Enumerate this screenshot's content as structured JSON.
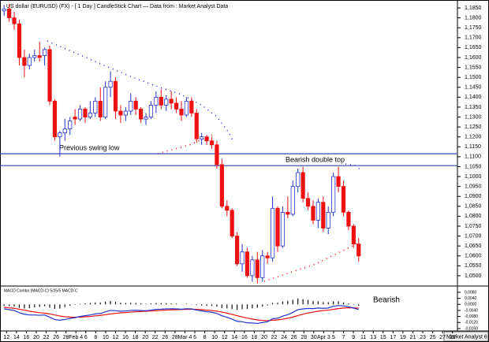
{
  "title": "US dollar (EURUSD) (FX) -  [ 1 Day ] CandleStick Chart — Data from : Market Analyst Data",
  "footer": "Market Analyst 6",
  "chart_data": [
    {
      "type": "candlestick",
      "up_color": "#2233cc",
      "down_color": "#ee1111",
      "open": [
        1.1835,
        1.1845,
        1.18,
        1.177,
        1.16,
        1.156,
        1.16,
        1.161,
        1.161,
        1.164,
        1.138,
        1.12,
        1.122,
        1.124,
        1.13,
        1.129,
        1.134,
        1.13,
        1.132,
        1.138,
        1.13,
        1.145,
        1.148,
        1.133,
        1.131,
        1.133,
        1.138,
        1.134,
        1.129,
        1.13,
        1.136,
        1.14,
        1.136,
        1.139,
        1.137,
        1.134,
        1.131,
        1.138,
        1.132,
        1.119,
        1.12,
        1.118,
        1.116,
        1.106,
        1.085,
        1.083,
        1.07,
        1.056,
        1.062,
        1.05,
        1.058,
        1.049,
        1.06,
        1.059,
        1.084,
        1.065,
        1.082,
        1.081,
        1.095,
        1.102,
        1.089,
        1.085,
        1.078,
        1.087,
        1.074,
        1.082,
        1.1,
        1.095,
        1.082,
        1.075,
        1.066
      ],
      "high": [
        1.1865,
        1.187,
        1.183,
        1.179,
        1.164,
        1.162,
        1.164,
        1.168,
        1.165,
        1.166,
        1.139,
        1.123,
        1.129,
        1.13,
        1.134,
        1.136,
        1.135,
        1.138,
        1.14,
        1.145,
        1.148,
        1.153,
        1.15,
        1.136,
        1.135,
        1.142,
        1.14,
        1.135,
        1.132,
        1.138,
        1.143,
        1.144,
        1.141,
        1.143,
        1.14,
        1.138,
        1.14,
        1.14,
        1.134,
        1.122,
        1.121,
        1.12,
        1.118,
        1.109,
        1.088,
        1.084,
        1.072,
        1.066,
        1.064,
        1.06,
        1.062,
        1.063,
        1.062,
        1.09,
        1.085,
        1.085,
        1.09,
        1.098,
        1.104,
        1.105,
        1.092,
        1.088,
        1.089,
        1.09,
        1.085,
        1.102,
        1.105,
        1.098,
        1.083,
        1.076,
        1.069
      ],
      "low": [
        1.181,
        1.178,
        1.174,
        1.156,
        1.15,
        1.154,
        1.158,
        1.158,
        1.156,
        1.136,
        1.118,
        1.11,
        1.118,
        1.121,
        1.126,
        1.128,
        1.127,
        1.129,
        1.13,
        1.128,
        1.129,
        1.14,
        1.129,
        1.127,
        1.128,
        1.131,
        1.131,
        1.127,
        1.126,
        1.129,
        1.132,
        1.134,
        1.133,
        1.134,
        1.132,
        1.128,
        1.13,
        1.13,
        1.117,
        1.116,
        1.116,
        1.114,
        1.104,
        1.084,
        1.08,
        1.069,
        1.055,
        1.052,
        1.049,
        1.047,
        1.046,
        1.047,
        1.056,
        1.057,
        1.062,
        1.064,
        1.079,
        1.08,
        1.092,
        1.087,
        1.083,
        1.076,
        1.074,
        1.072,
        1.071,
        1.08,
        1.092,
        1.08,
        1.073,
        1.064,
        1.057
      ],
      "close": [
        1.1845,
        1.18,
        1.177,
        1.16,
        1.156,
        1.16,
        1.161,
        1.16,
        1.164,
        1.138,
        1.12,
        1.122,
        1.124,
        1.128,
        1.129,
        1.134,
        1.13,
        1.132,
        1.138,
        1.13,
        1.145,
        1.148,
        1.133,
        1.131,
        1.133,
        1.138,
        1.134,
        1.129,
        1.13,
        1.136,
        1.14,
        1.136,
        1.139,
        1.137,
        1.134,
        1.131,
        1.138,
        1.132,
        1.119,
        1.12,
        1.118,
        1.116,
        1.106,
        1.085,
        1.083,
        1.07,
        1.056,
        1.062,
        1.05,
        1.058,
        1.049,
        1.06,
        1.059,
        1.084,
        1.065,
        1.082,
        1.081,
        1.095,
        1.102,
        1.089,
        1.085,
        1.078,
        1.087,
        1.074,
        1.082,
        1.1,
        1.095,
        1.082,
        1.075,
        1.066,
        1.06
      ],
      "ylim": [
        1.0452,
        1.1882
      ],
      "yticks": [
        {
          "value": 1.185,
          "label": "1,1850"
        },
        {
          "value": 1.18,
          "label": "1,1800"
        },
        {
          "value": 1.175,
          "label": "1,1750"
        },
        {
          "value": 1.17,
          "label": "1,1700"
        },
        {
          "value": 1.165,
          "label": "1,1650"
        },
        {
          "value": 1.16,
          "label": "1,1600"
        },
        {
          "value": 1.155,
          "label": "1,1550"
        },
        {
          "value": 1.15,
          "label": "1,1500"
        },
        {
          "value": 1.145,
          "label": "1,1450"
        },
        {
          "value": 1.14,
          "label": "1,1400"
        },
        {
          "value": 1.135,
          "label": "1,1350"
        },
        {
          "value": 1.13,
          "label": "1,1300"
        },
        {
          "value": 1.125,
          "label": "1,1250"
        },
        {
          "value": 1.12,
          "label": "1,1200"
        },
        {
          "value": 1.115,
          "label": "1,1150"
        },
        {
          "value": 1.11,
          "label": "1,1100"
        },
        {
          "value": 1.105,
          "label": "1,1050"
        },
        {
          "value": 1.1,
          "label": "1,1000"
        },
        {
          "value": 1.095,
          "label": "1,0950"
        },
        {
          "value": 1.09,
          "label": "1,0900"
        },
        {
          "value": 1.085,
          "label": "1,0850"
        },
        {
          "value": 1.08,
          "label": "1,0800"
        },
        {
          "value": 1.075,
          "label": "1,0750"
        },
        {
          "value": 1.07,
          "label": "1,0700"
        },
        {
          "value": 1.065,
          "label": "1,0650"
        },
        {
          "value": 1.06,
          "label": "1,0600"
        },
        {
          "value": 1.055,
          "label": "1,0550"
        },
        {
          "value": 1.05,
          "label": "1,0500"
        }
      ],
      "levels": [
        {
          "value": 1.1115,
          "label": "Previous swing low",
          "color": "#3344aa"
        },
        {
          "value": 1.1055,
          "label": "Bearish double top",
          "color": "#3344aa"
        }
      ],
      "x_labels": [
        "12",
        "14",
        "16",
        "20",
        "22",
        "26",
        "28",
        "Feb 4",
        "6",
        "8",
        "10",
        "12",
        "16",
        "18",
        "20",
        "22",
        "26",
        "28",
        "Mar 4",
        "6",
        "8",
        "10",
        "12",
        "14",
        "16",
        "18",
        "20",
        "22",
        "24",
        "26",
        "28",
        "30",
        "Apr 3",
        "5",
        "7",
        "9",
        "11",
        "13",
        "15",
        "17",
        "19",
        "21",
        "23",
        "25",
        "27",
        "29"
      ]
    },
    {
      "type": "macd",
      "title": "MACD Combo (MACD-C) 5/25/5 MACD-C",
      "annotation": "Bearish",
      "macd": {
        "color": "#2233cc",
        "values": [
          -0.003,
          -0.0035,
          -0.004,
          -0.0055,
          -0.0065,
          -0.007,
          -0.007,
          -0.0072,
          -0.007,
          -0.0085,
          -0.01,
          -0.0105,
          -0.01,
          -0.0093,
          -0.0088,
          -0.008,
          -0.0075,
          -0.007,
          -0.0063,
          -0.006,
          -0.005,
          -0.004,
          -0.0042,
          -0.0045,
          -0.0044,
          -0.004,
          -0.0039,
          -0.0041,
          -0.0042,
          -0.0038,
          -0.0033,
          -0.0032,
          -0.003,
          -0.0029,
          -0.003,
          -0.0032,
          -0.0029,
          -0.003,
          -0.0038,
          -0.0043,
          -0.0048,
          -0.0052,
          -0.006,
          -0.0075,
          -0.0085,
          -0.0098,
          -0.0112,
          -0.0115,
          -0.0122,
          -0.0123,
          -0.0126,
          -0.012,
          -0.0115,
          -0.0095,
          -0.0092,
          -0.0078,
          -0.0068,
          -0.0053,
          -0.0035,
          -0.003,
          -0.0027,
          -0.0028,
          -0.0024,
          -0.0026,
          -0.0024,
          -0.0012,
          -0.0008,
          -0.001,
          -0.0016,
          -0.0025,
          -0.0034
        ]
      },
      "signal": {
        "color": "#ee1111",
        "values": [
          -0.002,
          -0.0023,
          -0.0026,
          -0.0032,
          -0.0038,
          -0.0045,
          -0.005,
          -0.0055,
          -0.0058,
          -0.0063,
          -0.007,
          -0.0077,
          -0.0082,
          -0.0084,
          -0.0085,
          -0.0084,
          -0.0082,
          -0.008,
          -0.0076,
          -0.0073,
          -0.0068,
          -0.0063,
          -0.0059,
          -0.0056,
          -0.0054,
          -0.0051,
          -0.0049,
          -0.0047,
          -0.0046,
          -0.0044,
          -0.0042,
          -0.004,
          -0.0038,
          -0.0036,
          -0.0035,
          -0.0034,
          -0.0033,
          -0.0032,
          -0.0033,
          -0.0035,
          -0.0038,
          -0.0041,
          -0.0045,
          -0.0051,
          -0.0058,
          -0.0066,
          -0.0075,
          -0.0083,
          -0.0091,
          -0.0097,
          -0.0103,
          -0.0106,
          -0.0108,
          -0.0105,
          -0.0103,
          -0.0098,
          -0.0092,
          -0.0084,
          -0.0074,
          -0.0065,
          -0.0057,
          -0.0051,
          -0.0045,
          -0.0041,
          -0.0038,
          -0.0033,
          -0.0028,
          -0.0024,
          -0.0022,
          -0.0023,
          -0.0025
        ]
      },
      "histogram": {
        "color": "#111111",
        "values": [
          -0.001,
          -0.0012,
          -0.0014,
          -0.0023,
          -0.0027,
          -0.0025,
          -0.002,
          -0.0017,
          -0.0012,
          -0.0022,
          -0.003,
          -0.0028,
          -0.0018,
          -0.0009,
          -0.0003,
          0.0004,
          0.0007,
          0.001,
          0.0013,
          0.0013,
          0.0018,
          0.0023,
          0.0017,
          0.0011,
          0.001,
          0.0011,
          0.001,
          0.0006,
          0.0004,
          0.0006,
          0.0009,
          0.0008,
          0.0008,
          0.0007,
          0.0005,
          0.0002,
          0.0004,
          0.0002,
          -0.0005,
          -0.0008,
          -0.001,
          -0.0011,
          -0.0015,
          -0.0024,
          -0.0027,
          -0.0032,
          -0.0037,
          -0.0032,
          -0.0031,
          -0.0026,
          -0.0023,
          -0.0014,
          -0.0007,
          0.001,
          0.0011,
          0.002,
          0.0024,
          0.0031,
          0.0039,
          0.0035,
          0.003,
          0.0023,
          0.0021,
          0.0015,
          0.0014,
          0.0021,
          0.002,
          0.0014,
          0.0006,
          -0.0002,
          -0.0009
        ]
      },
      "ylim": [
        -0.0176,
        0.0111
      ],
      "yticks": [
        {
          "value": 0.008,
          "label": "0,0080"
        },
        {
          "value": 0.004,
          "label": "0,0040"
        },
        {
          "value": 0,
          "label": "0,0000"
        },
        {
          "value": -0.004,
          "label": "-0,0040"
        },
        {
          "value": -0.008,
          "label": "-0,0080"
        },
        {
          "value": -0.012,
          "label": "-0,0120"
        },
        {
          "value": -0.016,
          "label": "-0,0160"
        }
      ]
    }
  ]
}
